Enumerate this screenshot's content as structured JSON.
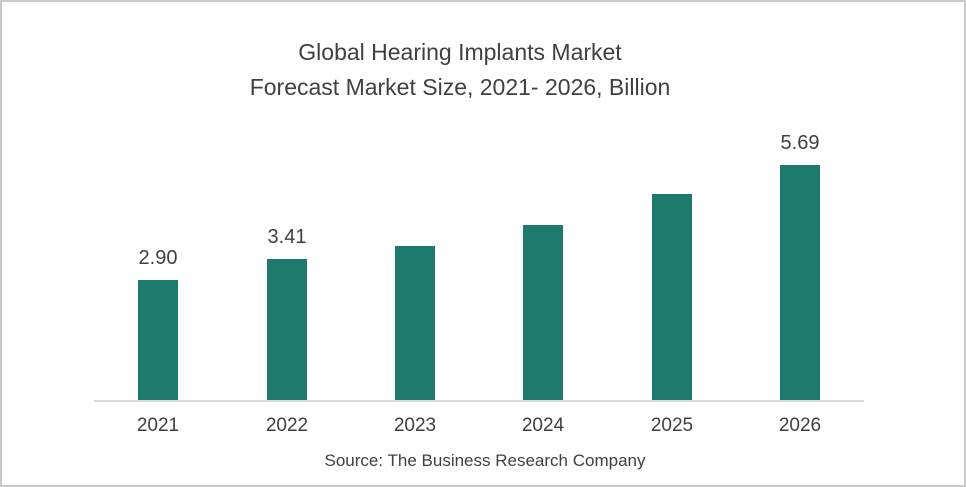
{
  "chart_data": {
    "type": "bar",
    "title": "Global Hearing Implants Market Forecast Market Size, 2021- 2026, Billion",
    "title_lines": [
      "Global Hearing Implants Market",
      "Forecast Market Size, 2021- 2026, Billion"
    ],
    "categories": [
      "2021",
      "2022",
      "2023",
      "2024",
      "2025",
      "2026"
    ],
    "values": [
      2.9,
      3.41,
      3.73,
      4.24,
      4.99,
      5.69
    ],
    "data_labels": [
      "2.90",
      "3.41",
      "",
      "",
      "",
      "5.69"
    ],
    "unit": "Billion",
    "xlabel": "",
    "ylabel": "",
    "ylim": [
      0,
      6.2
    ],
    "grid": false,
    "legend": "none",
    "bar_color": "#1E7A6C",
    "axis_line_color": "#D9D9D9",
    "text_color": "#404040",
    "source": "Source: The Business Research Company"
  }
}
